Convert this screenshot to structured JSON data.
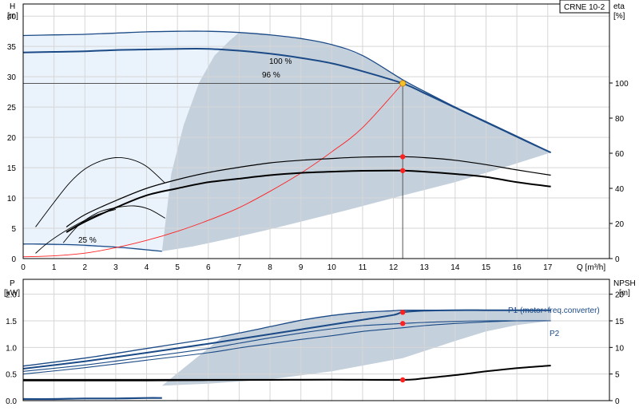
{
  "title_box": "CRNE 10-2",
  "colors": {
    "pump_curve": "#1b4a86",
    "load_curve": "#ff2020",
    "duty_point": "#ff2020",
    "duty_intersection": "#f6c02a",
    "area_light": "#eaf3fc",
    "area_gray": "#c4d0dc",
    "grid": "#d6d6d6"
  },
  "chart_data": [
    {
      "type": "line",
      "id": "top",
      "title": "",
      "ylabel_left_name": "H",
      "ylabel_left_unit": "[m]",
      "ylabel_right_name": "eta",
      "ylabel_right_unit": "[%]",
      "xlabel": "Q [m³/h]",
      "xlim": [
        0,
        19.0
      ],
      "ylim": [
        0,
        42
      ],
      "y2lim": [
        0,
        145
      ],
      "grid": true,
      "x_ticks": [
        0,
        1,
        2,
        3,
        4,
        5,
        6,
        7,
        8,
        9,
        10,
        11,
        12,
        13,
        14,
        15,
        16,
        17
      ],
      "y_ticks": [
        0,
        5,
        10,
        15,
        20,
        25,
        30,
        35,
        40
      ],
      "y2_ticks": [
        0,
        20,
        40,
        60,
        80,
        100
      ],
      "series": [
        {
          "role": "head_max",
          "style": "pump",
          "label": "100 %",
          "x": [
            0,
            1,
            2,
            3,
            4,
            5,
            6,
            7,
            8,
            9,
            10,
            11,
            12.3,
            13,
            14,
            15,
            16,
            17.1
          ],
          "y": [
            36.8,
            36.9,
            37.0,
            37.2,
            37.4,
            37.5,
            37.5,
            37.3,
            36.9,
            36.3,
            35.3,
            33.5,
            29.5,
            27.6,
            25.0,
            22.6,
            20.2,
            17.5
          ]
        },
        {
          "role": "head_96",
          "style": "pump",
          "label": "96 %",
          "x": [
            0,
            1,
            2,
            3,
            4,
            5,
            6,
            7,
            8,
            9,
            10,
            11,
            12.3,
            13,
            14,
            15,
            16,
            17.1
          ],
          "y": [
            34.0,
            34.1,
            34.2,
            34.4,
            34.5,
            34.6,
            34.6,
            34.3,
            33.8,
            33.1,
            32.2,
            30.9,
            28.9,
            27.3,
            24.9,
            22.5,
            20.1,
            17.5
          ]
        },
        {
          "role": "head_min",
          "style": "pump",
          "label": "25 %",
          "x": [
            0,
            0.5,
            1,
            1.5,
            2,
            2.5,
            3,
            3.5,
            4,
            4.5
          ],
          "y": [
            2.4,
            2.4,
            2.35,
            2.3,
            2.2,
            2.05,
            1.9,
            1.7,
            1.45,
            1.2
          ]
        },
        {
          "role": "system_curve",
          "style": "load",
          "x": [
            0,
            1,
            2,
            3,
            4,
            5,
            6,
            7,
            8,
            9,
            10,
            11,
            12.3
          ],
          "y": [
            0.3,
            0.45,
            0.9,
            1.8,
            3.0,
            4.5,
            6.3,
            8.4,
            11.1,
            14.1,
            17.6,
            21.6,
            28.9
          ]
        },
        {
          "role": "eta_upper",
          "style": "eta",
          "axis": "y2",
          "x": [
            1.4,
            2,
            3,
            4,
            5,
            6,
            7,
            8,
            9,
            10,
            11,
            12.3,
            13,
            14,
            15,
            16,
            17.1
          ],
          "y": [
            18,
            25,
            33,
            40,
            45,
            49,
            52,
            54.5,
            56,
            57,
            57.8,
            58.0,
            57.5,
            56,
            53.5,
            50.5,
            47.5
          ]
        },
        {
          "role": "eta_96",
          "style": "eta_bold",
          "axis": "y2",
          "x": [
            1.4,
            2,
            3,
            4,
            5,
            6,
            7,
            8,
            9,
            10,
            11,
            12.3,
            13,
            14,
            15,
            16,
            17.1
          ],
          "y": [
            15,
            21,
            29,
            36,
            40,
            43.5,
            45.5,
            47.5,
            48.8,
            49.5,
            50.0,
            50.1,
            49.5,
            48.2,
            46.5,
            43.5,
            41.0
          ]
        },
        {
          "role": "eta_low_a",
          "style": "eta_thin",
          "axis": "y2",
          "x": [
            0.4,
            1,
            1.5,
            2,
            2.5,
            3,
            3.5,
            4,
            4.6
          ],
          "y": [
            18,
            32,
            43,
            51,
            55.5,
            57.5,
            56.5,
            52.5,
            43
          ]
        },
        {
          "role": "eta_low_b",
          "style": "eta_thin",
          "axis": "y2",
          "x": [
            1.3,
            1.8,
            2.4,
            3,
            3.6,
            4.1,
            4.6
          ],
          "y": [
            9,
            19,
            26,
            29,
            30,
            28,
            23
          ]
        },
        {
          "role": "eta_low_c",
          "style": "eta_thin",
          "axis": "y2",
          "x": [
            0.4,
            0.8,
            1.3,
            1.8,
            2.4,
            3
          ],
          "y": [
            3,
            9,
            15,
            20,
            25,
            28
          ]
        }
      ],
      "duty_point": {
        "x": 12.3,
        "y": 28.9
      },
      "eta_points": [
        {
          "x": 12.3,
          "y2": 58.0
        },
        {
          "x": 12.3,
          "y2": 50.1
        }
      ],
      "labels": [
        "100 %",
        "96 %",
        "25 %"
      ]
    },
    {
      "type": "line",
      "id": "bottom",
      "title": "",
      "ylabel_left_name": "P",
      "ylabel_left_unit": "[kW]",
      "ylabel_right_name": "NPSH",
      "ylabel_right_unit": "[m]",
      "xlim": [
        0,
        19.0
      ],
      "ylim": [
        0,
        2.28
      ],
      "y2lim": [
        0,
        22.8
      ],
      "grid": true,
      "y_ticks": [
        0,
        0.5,
        1.0,
        1.5,
        2.0
      ],
      "y_tick_labels": [
        "0.0",
        "0.5",
        "1.0",
        "1.5",
        "2.0"
      ],
      "y2_ticks": [
        0,
        5,
        10,
        15,
        20
      ],
      "series": [
        {
          "role": "p1_max",
          "style": "pump",
          "label": "P1 (motor+freq.converter)",
          "x": [
            0,
            2,
            4,
            6,
            7,
            8,
            9,
            10,
            11,
            12,
            12.3,
            13,
            14,
            15,
            16,
            17.1
          ],
          "y": [
            0.65,
            0.8,
            0.98,
            1.16,
            1.27,
            1.39,
            1.51,
            1.6,
            1.66,
            1.69,
            1.7,
            1.7,
            1.7,
            1.7,
            1.7,
            1.7
          ]
        },
        {
          "role": "p1_96",
          "style": "pump",
          "x": [
            0,
            2,
            4,
            6,
            7,
            8,
            9,
            10,
            11,
            12,
            12.3,
            13,
            14,
            15,
            16,
            17.1
          ],
          "y": [
            0.6,
            0.74,
            0.9,
            1.07,
            1.16,
            1.25,
            1.34,
            1.43,
            1.52,
            1.61,
            1.66,
            1.69,
            1.7,
            1.7,
            1.7,
            1.7
          ]
        },
        {
          "role": "p2_max",
          "style": "pump_thin",
          "label": "P2",
          "x": [
            0,
            2,
            4,
            6,
            7,
            8,
            9,
            10,
            11,
            12.3,
            13,
            14,
            15,
            16,
            17.1
          ],
          "y": [
            0.55,
            0.67,
            0.82,
            0.98,
            1.08,
            1.18,
            1.27,
            1.35,
            1.41,
            1.45,
            1.47,
            1.49,
            1.5,
            1.5,
            1.5
          ]
        },
        {
          "role": "p2_96",
          "style": "pump_thin",
          "x": [
            0,
            2,
            4,
            6,
            7,
            8,
            9,
            10,
            11,
            12.3,
            13,
            14,
            15,
            16,
            17.1
          ],
          "y": [
            0.5,
            0.62,
            0.76,
            0.9,
            0.99,
            1.07,
            1.15,
            1.22,
            1.3,
            1.37,
            1.41,
            1.45,
            1.48,
            1.5,
            1.5
          ]
        },
        {
          "role": "p_min",
          "style": "pump_bold",
          "x": [
            0,
            1,
            2,
            3,
            4,
            4.5
          ],
          "y": [
            0.03,
            0.03,
            0.04,
            0.04,
            0.05,
            0.05
          ]
        },
        {
          "role": "npsh",
          "style": "eta_bold",
          "axis": "y2",
          "x": [
            0,
            2,
            4,
            6,
            8,
            10,
            12.3,
            13,
            14,
            15,
            16,
            17.1
          ],
          "y": [
            3.8,
            3.8,
            3.8,
            3.85,
            3.9,
            3.95,
            3.9,
            4.2,
            4.8,
            5.5,
            6.1,
            6.6
          ]
        }
      ],
      "points": [
        {
          "x": 12.3,
          "y": 1.66
        },
        {
          "x": 12.3,
          "y": 1.45
        }
      ],
      "npsh_point": {
        "x": 12.3,
        "y2": 3.9
      },
      "labels": [
        "P1 (motor+freq.converter)",
        "P2"
      ]
    }
  ]
}
